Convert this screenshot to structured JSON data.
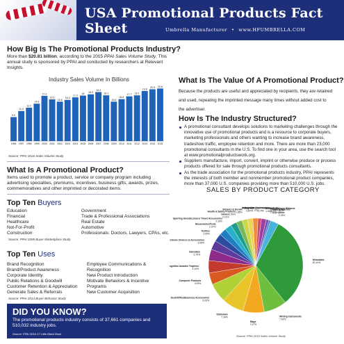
{
  "header": {
    "title": "USA Promotional Products Fact Sheet",
    "subtitle_left": "Umbrella Manufacturer",
    "subtitle_right": "www.HFUMBRELLA.COM"
  },
  "industry": {
    "heading": "How Big Is The Promotional Products Industry?",
    "intro_pre": "More than ",
    "intro_amount": "$20.81 billion",
    "intro_mid": ", according to the 2015 ",
    "intro_study": "PPAI Sales Volume Study",
    "intro_post": ". This annual study is sponsored by PPAI and conducted by researchers at Relevant Insights.",
    "source": "Source: PPAI 2016 Sales Volume Study"
  },
  "chart_data": {
    "type": "bar",
    "title": "Industry Sales Volume In Billions",
    "categories": [
      "1996",
      "1997",
      "1998",
      "1999",
      "2000",
      "2001",
      "2002",
      "2003",
      "2004",
      "2005",
      "2006",
      "2007",
      "2008",
      "2009",
      "2010",
      "2011",
      "2012",
      "2013",
      "2014",
      "2015"
    ],
    "values": [
      9.5,
      11.9,
      13.2,
      14.8,
      17.9,
      16.5,
      15.6,
      16.3,
      17.3,
      18.0,
      18.5,
      19.4,
      18.1,
      15.6,
      16.6,
      17.7,
      18.1,
      19.8,
      20.5,
      20.8
    ],
    "ylim": [
      0,
      22
    ]
  },
  "what_is": {
    "heading": "What Is A Promotional Product?",
    "body": "Items used to promote a product, service or company program including advertising specialties, premiums, incentives, business gifts, awards, prizes, commemoratives and other imprinted or decorated items."
  },
  "buyers": {
    "heading_main": "Top Ten",
    "heading_word": "Buyers",
    "col1": [
      "Education",
      "Financial",
      "Healthcare",
      "Not-For-Profit",
      "Construction"
    ],
    "col2": [
      "Government",
      "Trade & Professional Associations",
      "Real Estate",
      "Automotive",
      "Professionals: Doctors, Lawyers, CPAs, etc."
    ],
    "source": "Source: PPAI 2008 Buyer Marketplace Study"
  },
  "uses": {
    "heading_main": "Top Ten",
    "heading_word": "Uses",
    "col1": [
      "Brand Recognition",
      "Brand/Product Awareness",
      "Corporate Identity",
      "Public Relations & Goodwill",
      "Customer Retention & Appreciation",
      "Generate Sales & Referrals"
    ],
    "col2": [
      "Employee Communications &",
      "Recognition",
      "New Product Introduction",
      "Motivate Behaviors & Incentive",
      "Programs",
      "New Customer Acquisition"
    ],
    "source": "Source: PPAI 2014 Buyer Behavior Study"
  },
  "dyk": {
    "question": "DID YOU KNOW?",
    "answer": "The promotional products industry consists of 37,661 companies and 510,032 industry jobs.",
    "source": "Source: PPAI 2016-17 Little Black Book"
  },
  "value": {
    "heading": "What Is The Value Of A Promotional Product?",
    "line1": "Because the products are useful and appreciated by recipients, they  are retained",
    "line2": "and used, repeating the imprinted message many times without added cost to",
    "line3": "the advertiser."
  },
  "structure": {
    "heading": "How Is The Industry Structured?",
    "bullets": [
      "A promotional consultant develops solutions to marketing challenges through the innovative use of promotional products and is a resource to corporate buyers, marketing professionals and others wanting to increase brand awareness, tradeshow traffic, employee retention and more. There are more than 23,000 promotional consultants in the U.S. To find one in your area, use the search tool at www.promotionalproductswork.org.",
      "Suppliers manufacture, import, convert, imprint or otherwise produce or process products offered for sale through promotional products consultants.",
      "As the trade association for the promotional products industry, PPAI represents the interests of both member and nonmember promotional product companies, more than 37,000 U.S. companies providing more than 510,000 U.S. jobs."
    ]
  },
  "pie": {
    "title": "SALES BY PRODUCT CATEGORY",
    "source": "Source: PPAI 2015 Sales Volume Study",
    "slices": [
      {
        "label": "Wearables",
        "value": 30.44,
        "color": "#2e9a3a"
      },
      {
        "label": "Writing Instruments",
        "value": 7.62,
        "color": "#6fbf3f"
      },
      {
        "label": "Bags",
        "value": 7.07,
        "color": "#f2a91f"
      },
      {
        "label": "Drinkware",
        "value": 7.34,
        "color": "#e8c62a"
      },
      {
        "label": "Desk/Office/Business Accessories",
        "value": 6.33,
        "color": "#b1d236"
      },
      {
        "label": "Computer Products",
        "value": 3.93,
        "color": "#d95a1e"
      },
      {
        "label": "Recognition Awards/ Trophies",
        "value": 4.1,
        "color": "#c23a2b"
      },
      {
        "label": "Calendars",
        "value": 3.75,
        "color": "#8e2a8a"
      },
      {
        "label": "Electronic Devices & Accessories",
        "value": 3.08,
        "color": "#5d3a9b"
      },
      {
        "label": "Textiles",
        "value": 2.65,
        "color": "#2b4da0"
      },
      {
        "label": "Housewares/Tools",
        "value": 2.37,
        "color": "#1f7fc4"
      },
      {
        "label": "Sporting Goods/Leisure/ Travel Accessories",
        "value": 2.26,
        "color": "#27b0c9"
      },
      {
        "label": "Games",
        "value": 2.01,
        "color": "#1e9c8c"
      },
      {
        "label": "Health & Safety Products",
        "value": 1.96,
        "color": "#7ab85a"
      },
      {
        "label": "Stickers & Decals",
        "value": 1.85,
        "color": "#c9d94a"
      },
      {
        "label": "Magnets",
        "value": 1.8,
        "color": "#ecd35a"
      },
      {
        "label": "Automotive Accessories",
        "value": 1.7,
        "color": "#f08a3c"
      },
      {
        "label": "Personal/Pocket Purse Products",
        "value": 1.14,
        "color": "#d44b6d"
      },
      {
        "label": "Buttons/ Badges/ Ribbons",
        "value": 1.6,
        "color": "#9c3fa0"
      },
      {
        "label": "Clocks & Watches",
        "value": 0.9,
        "color": "#6f56b3"
      },
      {
        "label": "Gift Cards",
        "value": 0.57,
        "color": "#4a79c9"
      },
      {
        "label": "Other",
        "value": 2.78,
        "color": "#48b4de"
      }
    ],
    "pct_labels": [
      "30.44%",
      "7.62%",
      "7.07%",
      "7.34%",
      "6.33%",
      "3.93%",
      "4.10%",
      "3.75%",
      "3.08%",
      "2.65%",
      "2.37%",
      "2.26%",
      "2.01%",
      "1.96%",
      "1.85%",
      "1.80%",
      "1.70%",
      "1.14%",
      "1.60%",
      "0.90%",
      "0.57%",
      "2.78%"
    ]
  }
}
